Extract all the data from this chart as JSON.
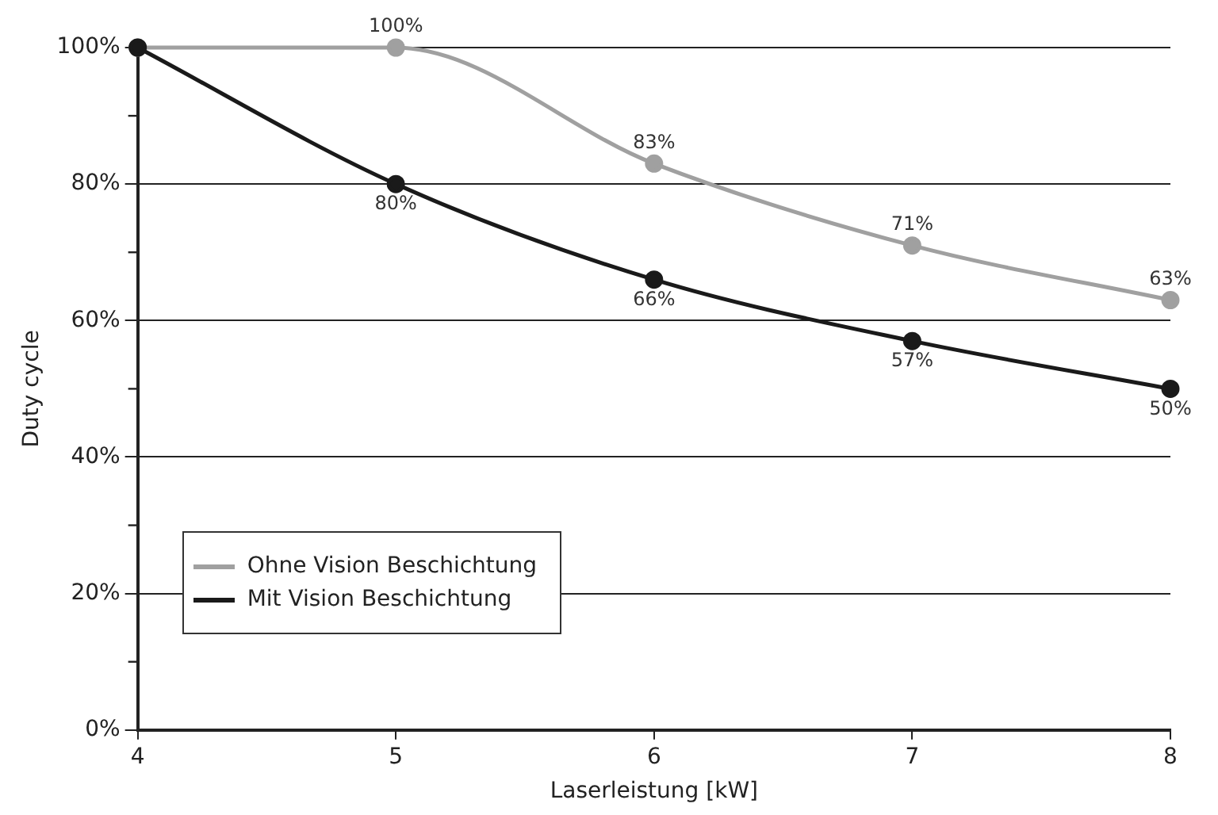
{
  "chart_data": {
    "type": "line",
    "xlabel": "Laserleistung [kW]",
    "ylabel": "Duty cycle",
    "x": [
      4,
      5,
      6,
      7,
      8
    ],
    "series": [
      {
        "name": "Ohne Vision Beschichtung",
        "color": "#a0a0a0",
        "values": [
          100,
          100,
          83,
          71,
          63
        ],
        "value_labels": [
          null,
          "100%",
          "83%",
          "71%",
          "63%"
        ]
      },
      {
        "name": "Mit Vision Beschichtung",
        "color": "#1a1a1a",
        "values": [
          100,
          80,
          66,
          57,
          50
        ],
        "value_labels": [
          null,
          "80%",
          "66%",
          "57%",
          "50%"
        ]
      }
    ],
    "xlim": [
      4,
      8
    ],
    "xticks": [
      4,
      5,
      6,
      7,
      8
    ],
    "ylim": [
      0,
      100
    ],
    "yticks": [
      {
        "value": 0,
        "label": "0%"
      },
      {
        "value": 20,
        "label": "20%"
      },
      {
        "value": 40,
        "label": "40%"
      },
      {
        "value": 60,
        "label": "60%"
      },
      {
        "value": 80,
        "label": "80%"
      },
      {
        "value": 100,
        "label": "100%"
      }
    ],
    "grid": "y",
    "legend": "bottom left",
    "marker": "circle",
    "line_style": "solid"
  }
}
